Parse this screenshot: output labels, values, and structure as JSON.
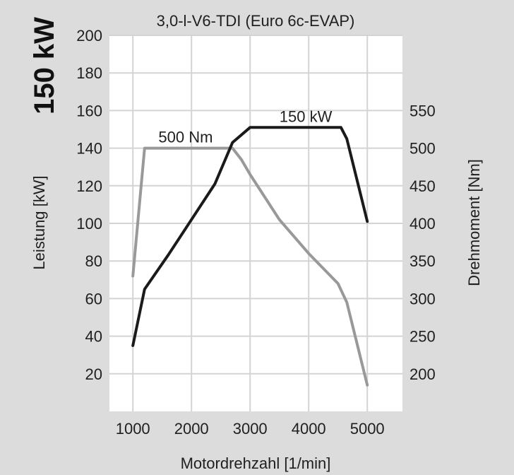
{
  "badge": "150 kW",
  "chart_data": {
    "type": "line",
    "title": "3,0-l-V6-TDI (Euro 6c-EVAP)",
    "xlabel": "Motordrehzahl [1/min]",
    "ylabel_left": "Leistung [kW]",
    "ylabel_right": "Drehmoment [Nm]",
    "xlim": [
      600,
      5600
    ],
    "ylim_left": [
      0,
      200
    ],
    "ylim_right": [
      150,
      650
    ],
    "x_ticks": [
      1000,
      2000,
      3000,
      4000,
      5000
    ],
    "y_left_ticks": [
      20,
      40,
      60,
      80,
      100,
      120,
      140,
      160,
      180,
      200
    ],
    "y_right_ticks": [
      200,
      250,
      300,
      350,
      400,
      450,
      500,
      550
    ],
    "grid": true,
    "series": [
      {
        "name": "150 kW",
        "axis": "left",
        "color": "#1a1a1a",
        "points": [
          [
            1000,
            35
          ],
          [
            1200,
            65
          ],
          [
            1600,
            83
          ],
          [
            2000,
            102
          ],
          [
            2400,
            121
          ],
          [
            2700,
            143
          ],
          [
            3000,
            151
          ],
          [
            4000,
            151
          ],
          [
            4550,
            151
          ],
          [
            4650,
            145
          ],
          [
            5000,
            101
          ]
        ]
      },
      {
        "name": "500 Nm",
        "axis": "right",
        "color": "#999999",
        "points": [
          [
            1000,
            330
          ],
          [
            1200,
            500
          ],
          [
            2700,
            500
          ],
          [
            2850,
            485
          ],
          [
            3000,
            465
          ],
          [
            3500,
            405
          ],
          [
            4000,
            360
          ],
          [
            4500,
            320
          ],
          [
            4650,
            295
          ],
          [
            5000,
            185
          ]
        ]
      }
    ]
  }
}
